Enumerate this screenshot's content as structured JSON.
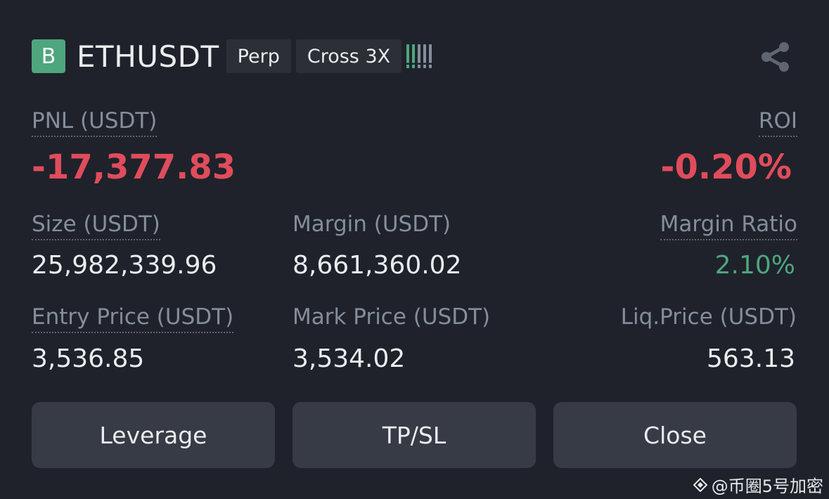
{
  "header": {
    "side_badge": "B",
    "symbol": "ETHUSDT",
    "tag_perp": "Perp",
    "tag_margin": "Cross 3X",
    "risk_colors": [
      "#4ea67e",
      "#4ea67e",
      "#848e9c",
      "#848e9c",
      "#848e9c"
    ]
  },
  "pnl": {
    "label": "PNL (USDT)",
    "value": "-17,377.83"
  },
  "roi": {
    "label": "ROI",
    "value": "-0.20%"
  },
  "size": {
    "label": "Size (USDT)",
    "value": "25,982,339.96"
  },
  "margin": {
    "label": "Margin (USDT)",
    "value": "8,661,360.02"
  },
  "margin_ratio": {
    "label": "Margin Ratio",
    "value": "2.10%"
  },
  "entry_price": {
    "label": "Entry Price (USDT)",
    "value": "3,536.85"
  },
  "mark_price": {
    "label": "Mark Price (USDT)",
    "value": "3,534.02"
  },
  "liq_price": {
    "label": "Liq.Price (USDT)",
    "value": "563.13"
  },
  "buttons": {
    "leverage": "Leverage",
    "tpsl": "TP/SL",
    "close": "Close"
  },
  "watermark": {
    "text": "@币圈5号加密"
  },
  "colors": {
    "background": "#1f222a",
    "negative": "#e04c5c",
    "positive": "#4ea67e",
    "muted": "#848e9c",
    "button": "#363b45"
  }
}
